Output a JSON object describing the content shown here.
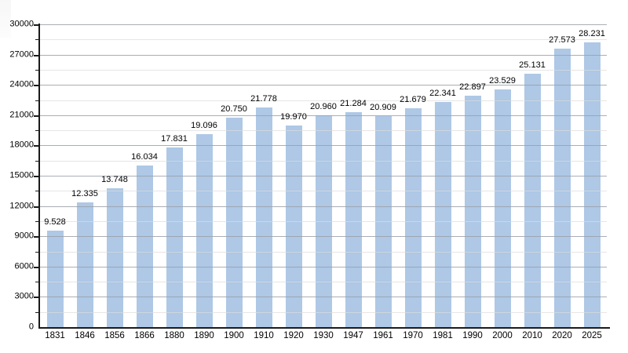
{
  "chart_data": {
    "type": "bar",
    "title": "",
    "xlabel": "",
    "ylabel": "",
    "categories": [
      "1831",
      "1846",
      "1856",
      "1866",
      "1880",
      "1890",
      "1900",
      "1910",
      "1920",
      "1930",
      "1947",
      "1961",
      "1970",
      "1981",
      "1990",
      "2000",
      "2010",
      "2020",
      "2025"
    ],
    "values": [
      9528,
      12335,
      13748,
      16034,
      17831,
      19096,
      20750,
      21778,
      19970,
      20960,
      21284,
      20909,
      21679,
      22341,
      22897,
      23529,
      25131,
      27573,
      28231
    ],
    "value_labels": [
      "9.528",
      "12.335",
      "13.748",
      "16.034",
      "17.831",
      "19.096",
      "20.750",
      "21.778",
      "19.970",
      "20.960",
      "21.284",
      "20.909",
      "21.679",
      "22.341",
      "22.897",
      "23.529",
      "25.131",
      "27.573",
      "28.231"
    ],
    "ylim": [
      0,
      30000
    ],
    "y_major_step": 3000,
    "y_minor_step": 1500,
    "y_tick_labels": [
      "0",
      "3000",
      "6000",
      "9000",
      "12000",
      "15000",
      "18000",
      "21000",
      "24000",
      "27000",
      "30000"
    ],
    "grid": "on",
    "legend": "none",
    "colors": {
      "bar": "#aec8e6",
      "grid_major": "#9aa0a8",
      "grid_minor": "#dcdcdc",
      "axis": "#1a1a1a",
      "label_text": "#000000",
      "background": "#ffffff"
    }
  }
}
